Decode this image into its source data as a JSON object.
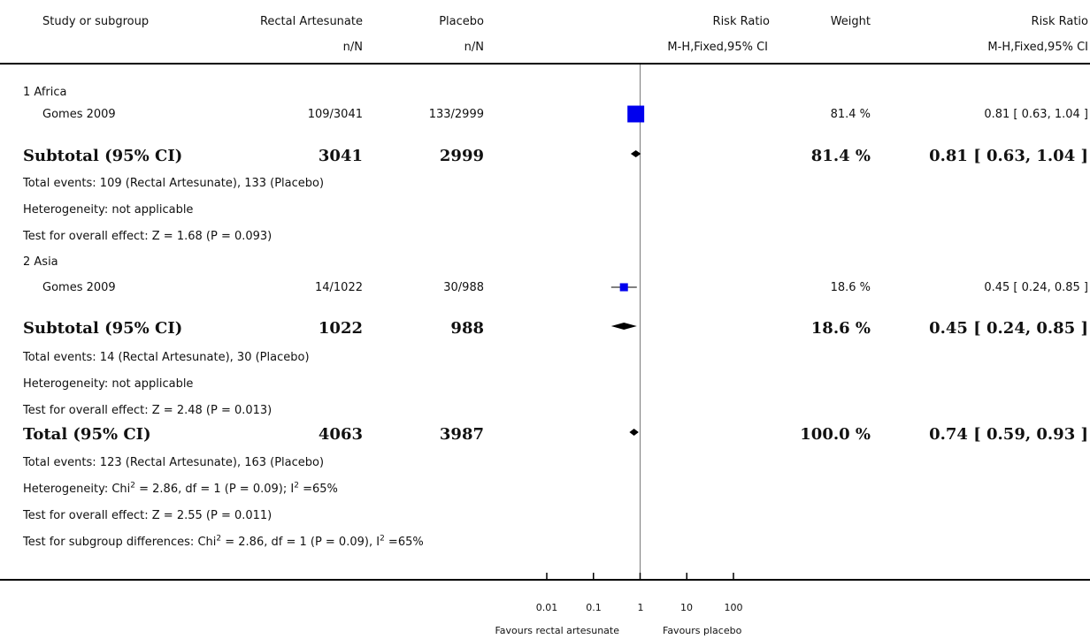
{
  "header": {
    "study": "Study or subgroup",
    "group1": "Rectal Artesunate",
    "group2": "Placebo",
    "effect": "Risk Ratio",
    "weight": "Weight",
    "effect_ci": "Risk Ratio",
    "group1_sub": "n/N",
    "group2_sub": "n/N",
    "effect_sub": "M-H,Fixed,95% CI",
    "ci_sub": "M-H,Fixed,95% CI"
  },
  "groups": [
    {
      "title": "1 Africa",
      "study": {
        "name": "Gomes 2009",
        "g1": "109/3041",
        "g2": "133/2999",
        "weight": "81.4 %",
        "ci": "0.81 [ 0.63, 1.04 ]"
      },
      "subtotal": {
        "label": "Subtotal (95% CI)",
        "g1": "3041",
        "g2": "2999",
        "weight": "81.4 %",
        "ci": "0.81 [ 0.63, 1.04 ]"
      },
      "notes": [
        "Total events: 109 (Rectal Artesunate), 133 (Placebo)",
        "Heterogeneity: not applicable",
        "Test for overall effect: Z = 1.68 (P = 0.093)"
      ]
    },
    {
      "title": "2 Asia",
      "study": {
        "name": "Gomes 2009",
        "g1": "14/1022",
        "g2": "30/988",
        "weight": "18.6 %",
        "ci": "0.45 [ 0.24, 0.85 ]"
      },
      "subtotal": {
        "label": "Subtotal (95% CI)",
        "g1": "1022",
        "g2": "988",
        "weight": "18.6 %",
        "ci": "0.45 [ 0.24, 0.85 ]"
      },
      "notes": [
        "Total events: 14 (Rectal Artesunate), 30 (Placebo)",
        "Heterogeneity: not applicable",
        "Test for overall effect: Z = 2.48 (P = 0.013)"
      ]
    }
  ],
  "total": {
    "label": "Total (95% CI)",
    "g1": "4063",
    "g2": "3987",
    "weight": "100.0 %",
    "ci": "0.74 [ 0.59, 0.93 ]",
    "events": "Total events: 123 (Rectal Artesunate), 163 (Placebo)",
    "het_pre": "Heterogeneity: Chi",
    "het_mid": " = 2.86, df = 1 (P = 0.09); I",
    "het_post": " =65%",
    "overall": "Test for overall effect: Z = 2.55 (P = 0.011)",
    "sub_pre": "Test for subgroup differences: Chi",
    "sub_mid": " = 2.86, df = 1 (P = 0.09), I",
    "sub_post": " =65%",
    "sup": "2"
  },
  "chart_data": {
    "type": "forest",
    "scale": "log",
    "xlim": [
      0.01,
      100
    ],
    "ticks": [
      0.01,
      0.1,
      1,
      10,
      100
    ],
    "tick_labels": [
      "0.01",
      "0.1",
      "1",
      "10",
      "100"
    ],
    "favours_left": "Favours rectal artesunate",
    "favours_right": "Favours placebo",
    "marker_color": "#0000ee",
    "studies": [
      {
        "name": "Gomes 2009 (1 Africa)",
        "rr": 0.81,
        "lo": 0.63,
        "hi": 1.04,
        "weight": 81.4
      },
      {
        "name": "Gomes 2009 (2 Asia)",
        "rr": 0.45,
        "lo": 0.24,
        "hi": 0.85,
        "weight": 18.6
      }
    ],
    "summaries": [
      {
        "name": "Subtotal (95% CI) 1 Africa",
        "rr": 0.81,
        "lo": 0.63,
        "hi": 1.04
      },
      {
        "name": "Subtotal (95% CI) 2 Asia",
        "rr": 0.45,
        "lo": 0.24,
        "hi": 0.85
      },
      {
        "name": "Total (95% CI)",
        "rr": 0.74,
        "lo": 0.59,
        "hi": 0.93
      }
    ]
  }
}
